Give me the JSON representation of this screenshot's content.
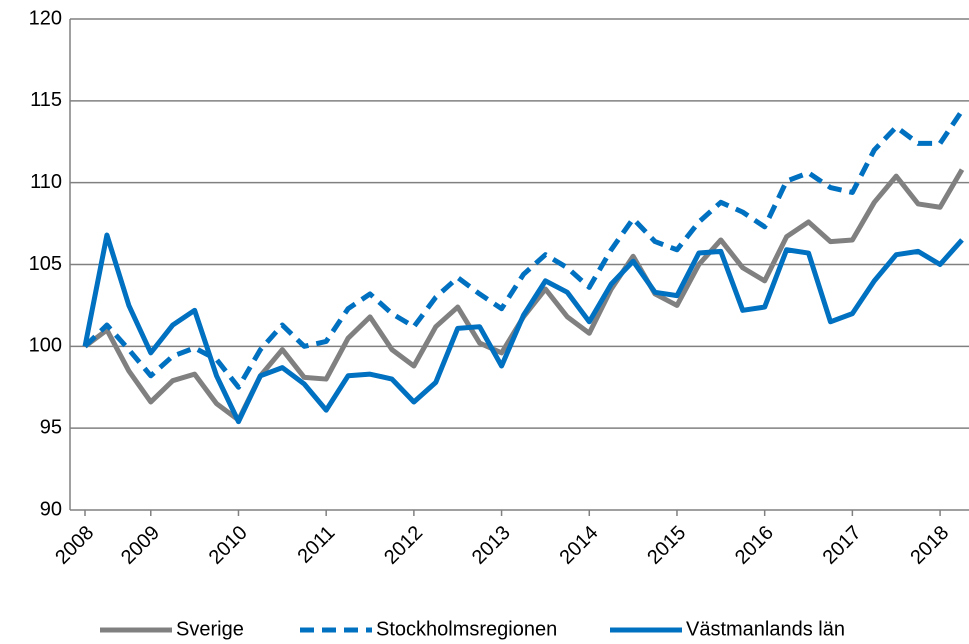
{
  "chart_data": {
    "type": "line",
    "categories": [
      "2008",
      null,
      null,
      "2009",
      null,
      null,
      null,
      "2010",
      null,
      null,
      null,
      "2011",
      null,
      null,
      null,
      "2012",
      null,
      null,
      null,
      "2013",
      null,
      null,
      null,
      "2014",
      null,
      null,
      null,
      "2015",
      null,
      null,
      null,
      "2016",
      null,
      null,
      null,
      "2017",
      null,
      null,
      null,
      "2018",
      null
    ],
    "series": [
      {
        "name": "Sverige",
        "color": "#808080",
        "dash": false,
        "values": [
          100,
          101,
          98.5,
          96.6,
          97.9,
          98.3,
          96.5,
          95.5,
          98.2,
          99.8,
          98.1,
          98.0,
          100.5,
          101.8,
          99.8,
          98.8,
          101.2,
          102.4,
          100.2,
          99.6,
          101.8,
          103.5,
          101.8,
          100.8,
          103.5,
          105.5,
          103.2,
          102.5,
          105,
          106.5,
          104.8,
          104.0,
          106.7,
          107.6,
          106.4,
          106.5,
          108.8,
          110.4,
          108.7,
          108.5,
          110.8
        ]
      },
      {
        "name": "Stockholmsregionen",
        "color": "#0070c0",
        "dash": true,
        "values": [
          100,
          101.3,
          99.8,
          98.2,
          99.4,
          99.9,
          99.2,
          97.5,
          99.8,
          101.3,
          100.0,
          100.3,
          102.3,
          103.2,
          102.0,
          101.2,
          103.0,
          104.2,
          103.2,
          102.3,
          104.4,
          105.6,
          104.8,
          103.6,
          105.9,
          107.8,
          106.4,
          105.9,
          107.6,
          108.8,
          108.2,
          107.3,
          110.1,
          110.6,
          109.7,
          109.4,
          112.0,
          113.4,
          112.4,
          112.4,
          114.4
        ]
      },
      {
        "name": "Västmanlands län",
        "color": "#0070c0",
        "dash": false,
        "values": [
          100,
          106.8,
          102.5,
          99.6,
          101.3,
          102.2,
          98.2,
          95.4,
          98.2,
          98.7,
          97.7,
          96.1,
          98.2,
          98.3,
          98.0,
          96.6,
          97.8,
          101.1,
          101.2,
          98.8,
          101.9,
          104.0,
          103.3,
          101.5,
          103.8,
          105.2,
          103.3,
          103.1,
          105.7,
          105.8,
          102.2,
          102.4,
          105.9,
          105.7,
          101.5,
          102.0,
          104.0,
          105.6,
          105.8,
          105.0,
          106.5
        ]
      }
    ],
    "ylim": [
      90,
      120
    ],
    "yticks": [
      90,
      95,
      100,
      105,
      110,
      115,
      120
    ],
    "grid": true,
    "legend": "bottom"
  }
}
